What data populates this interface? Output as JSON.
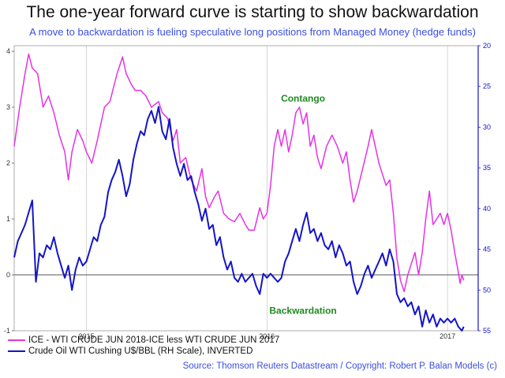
{
  "colors": {
    "spread": "#e632e6",
    "crude": "#1414c8",
    "accent_blue": "#3a4fe0",
    "annotation_green": "#1f8a1f",
    "zero_line": "#555555",
    "grid": "#bbbbbb"
  },
  "chart_data": {
    "type": "line",
    "title": "The one-year forward curve is starting to show backwardation",
    "subtitle": "A move to backwardation is fueling speculative long positions from Managed Money (hedge funds)",
    "source": "Source: Thomson Reuters Datastream / Copyright: Robert P. Balan Models (c)",
    "x_ticks": [
      "2015",
      "2016",
      "2017"
    ],
    "x_tick_positions": [
      2015.0,
      2016.0,
      2017.0
    ],
    "x_range": [
      2014.6,
      2017.17
    ],
    "left_axis": {
      "ticks": [
        "-1",
        "0",
        "1",
        "2",
        "3",
        "4"
      ],
      "range": [
        -1,
        4.1
      ]
    },
    "right_axis": {
      "ticks": [
        "20",
        "25",
        "30",
        "35",
        "40",
        "45",
        "50",
        "55"
      ],
      "range": [
        20,
        55
      ],
      "inverted": true
    },
    "annotations": [
      {
        "text": "Contango",
        "x": 2016.2,
        "y": 3.1
      },
      {
        "text": "Backwardation",
        "x": 2016.2,
        "y": -0.7
      }
    ],
    "series": [
      {
        "name": "ICE - WTI CRUDE JUN 2018-ICE less WTI CRUDE JUN 2017",
        "axis": "left",
        "points": [
          [
            2014.6,
            2.3
          ],
          [
            2014.63,
            3.0
          ],
          [
            2014.66,
            3.6
          ],
          [
            2014.68,
            3.95
          ],
          [
            2014.7,
            3.7
          ],
          [
            2014.73,
            3.6
          ],
          [
            2014.76,
            3.0
          ],
          [
            2014.79,
            3.2
          ],
          [
            2014.82,
            2.9
          ],
          [
            2014.85,
            2.5
          ],
          [
            2014.88,
            2.2
          ],
          [
            2014.9,
            1.7
          ],
          [
            2014.92,
            2.2
          ],
          [
            2014.95,
            2.6
          ],
          [
            2014.98,
            2.4
          ],
          [
            2015.0,
            2.2
          ],
          [
            2015.03,
            2.0
          ],
          [
            2015.06,
            2.4
          ],
          [
            2015.1,
            3.0
          ],
          [
            2015.13,
            3.1
          ],
          [
            2015.17,
            3.6
          ],
          [
            2015.2,
            3.9
          ],
          [
            2015.22,
            3.6
          ],
          [
            2015.25,
            3.4
          ],
          [
            2015.27,
            3.3
          ],
          [
            2015.3,
            3.3
          ],
          [
            2015.33,
            3.2
          ],
          [
            2015.36,
            3.0
          ],
          [
            2015.4,
            3.1
          ],
          [
            2015.42,
            2.9
          ],
          [
            2015.45,
            2.8
          ],
          [
            2015.48,
            2.4
          ],
          [
            2015.5,
            2.6
          ],
          [
            2015.52,
            2.0
          ],
          [
            2015.55,
            2.1
          ],
          [
            2015.58,
            1.7
          ],
          [
            2015.61,
            1.5
          ],
          [
            2015.64,
            1.9
          ],
          [
            2015.66,
            1.4
          ],
          [
            2015.68,
            1.2
          ],
          [
            2015.71,
            1.4
          ],
          [
            2015.73,
            1.5
          ],
          [
            2015.76,
            1.1
          ],
          [
            2015.79,
            1.0
          ],
          [
            2015.82,
            0.95
          ],
          [
            2015.85,
            1.1
          ],
          [
            2015.88,
            0.9
          ],
          [
            2015.9,
            0.8
          ],
          [
            2015.93,
            0.8
          ],
          [
            2015.96,
            1.2
          ],
          [
            2015.98,
            1.0
          ],
          [
            2016.0,
            1.1
          ],
          [
            2016.02,
            1.6
          ],
          [
            2016.04,
            2.3
          ],
          [
            2016.06,
            2.6
          ],
          [
            2016.08,
            2.3
          ],
          [
            2016.1,
            2.6
          ],
          [
            2016.12,
            2.2
          ],
          [
            2016.14,
            2.5
          ],
          [
            2016.16,
            2.9
          ],
          [
            2016.18,
            3.0
          ],
          [
            2016.2,
            2.7
          ],
          [
            2016.22,
            2.9
          ],
          [
            2016.24,
            2.3
          ],
          [
            2016.26,
            2.5
          ],
          [
            2016.28,
            2.1
          ],
          [
            2016.3,
            1.9
          ],
          [
            2016.33,
            2.3
          ],
          [
            2016.36,
            2.5
          ],
          [
            2016.39,
            2.3
          ],
          [
            2016.42,
            2.0
          ],
          [
            2016.44,
            2.2
          ],
          [
            2016.46,
            1.7
          ],
          [
            2016.48,
            1.3
          ],
          [
            2016.5,
            1.5
          ],
          [
            2016.53,
            1.9
          ],
          [
            2016.56,
            2.3
          ],
          [
            2016.58,
            2.6
          ],
          [
            2016.6,
            2.3
          ],
          [
            2016.62,
            2.0
          ],
          [
            2016.64,
            1.8
          ],
          [
            2016.66,
            1.6
          ],
          [
            2016.68,
            1.7
          ],
          [
            2016.7,
            1.1
          ],
          [
            2016.72,
            0.3
          ],
          [
            2016.74,
            -0.1
          ],
          [
            2016.76,
            -0.3
          ],
          [
            2016.78,
            0.0
          ],
          [
            2016.8,
            0.2
          ],
          [
            2016.82,
            0.4
          ],
          [
            2016.84,
            0.0
          ],
          [
            2016.86,
            0.4
          ],
          [
            2016.88,
            1.0
          ],
          [
            2016.9,
            1.5
          ],
          [
            2016.92,
            0.9
          ],
          [
            2016.94,
            1.0
          ],
          [
            2016.96,
            1.1
          ],
          [
            2016.98,
            0.9
          ],
          [
            2017.0,
            1.1
          ],
          [
            2017.02,
            0.8
          ],
          [
            2017.04,
            0.4
          ],
          [
            2017.06,
            0.05
          ],
          [
            2017.07,
            -0.15
          ],
          [
            2017.08,
            0.0
          ],
          [
            2017.09,
            -0.1
          ]
        ]
      },
      {
        "name": "Crude Oil WTI Cushing U$/BBL (RH Scale), INVERTED",
        "axis": "right",
        "points": [
          [
            2014.6,
            46.0
          ],
          [
            2014.62,
            44.0
          ],
          [
            2014.64,
            43.0
          ],
          [
            2014.66,
            42.0
          ],
          [
            2014.68,
            40.5
          ],
          [
            2014.7,
            39.0
          ],
          [
            2014.72,
            49.0
          ],
          [
            2014.74,
            45.5
          ],
          [
            2014.76,
            46.0
          ],
          [
            2014.78,
            44.5
          ],
          [
            2014.8,
            45.0
          ],
          [
            2014.82,
            43.5
          ],
          [
            2014.84,
            45.5
          ],
          [
            2014.86,
            47.0
          ],
          [
            2014.88,
            48.5
          ],
          [
            2014.9,
            47.0
          ],
          [
            2014.92,
            50.0
          ],
          [
            2014.94,
            47.5
          ],
          [
            2014.96,
            46.0
          ],
          [
            2014.98,
            47.0
          ],
          [
            2015.0,
            46.5
          ],
          [
            2015.02,
            45.0
          ],
          [
            2015.04,
            43.5
          ],
          [
            2015.06,
            44.0
          ],
          [
            2015.08,
            42.0
          ],
          [
            2015.1,
            41.0
          ],
          [
            2015.12,
            38.0
          ],
          [
            2015.14,
            36.5
          ],
          [
            2015.16,
            35.5
          ],
          [
            2015.18,
            34.0
          ],
          [
            2015.2,
            36.0
          ],
          [
            2015.22,
            38.5
          ],
          [
            2015.24,
            37.0
          ],
          [
            2015.26,
            34.0
          ],
          [
            2015.28,
            32.0
          ],
          [
            2015.3,
            30.5
          ],
          [
            2015.32,
            31.0
          ],
          [
            2015.34,
            29.0
          ],
          [
            2015.36,
            28.0
          ],
          [
            2015.38,
            29.5
          ],
          [
            2015.4,
            27.5
          ],
          [
            2015.42,
            30.5
          ],
          [
            2015.44,
            31.5
          ],
          [
            2015.46,
            29.0
          ],
          [
            2015.48,
            32.5
          ],
          [
            2015.5,
            34.5
          ],
          [
            2015.52,
            36.0
          ],
          [
            2015.54,
            34.5
          ],
          [
            2015.56,
            36.5
          ],
          [
            2015.58,
            36.0
          ],
          [
            2015.6,
            38.0
          ],
          [
            2015.62,
            39.5
          ],
          [
            2015.64,
            41.5
          ],
          [
            2015.66,
            40.0
          ],
          [
            2015.68,
            42.5
          ],
          [
            2015.7,
            42.0
          ],
          [
            2015.72,
            44.5
          ],
          [
            2015.74,
            43.5
          ],
          [
            2015.76,
            46.0
          ],
          [
            2015.78,
            47.5
          ],
          [
            2015.8,
            46.5
          ],
          [
            2015.82,
            48.5
          ],
          [
            2015.84,
            49.0
          ],
          [
            2015.86,
            48.0
          ],
          [
            2015.88,
            49.0
          ],
          [
            2015.9,
            48.5
          ],
          [
            2015.92,
            48.0
          ],
          [
            2015.94,
            49.5
          ],
          [
            2015.96,
            50.5
          ],
          [
            2015.98,
            48.0
          ],
          [
            2016.0,
            48.5
          ],
          [
            2016.02,
            48.0
          ],
          [
            2016.04,
            48.5
          ],
          [
            2016.06,
            49.0
          ],
          [
            2016.08,
            48.5
          ],
          [
            2016.1,
            46.5
          ],
          [
            2016.12,
            45.5
          ],
          [
            2016.14,
            44.0
          ],
          [
            2016.16,
            42.5
          ],
          [
            2016.18,
            44.0
          ],
          [
            2016.2,
            42.0
          ],
          [
            2016.22,
            40.5
          ],
          [
            2016.24,
            43.0
          ],
          [
            2016.26,
            42.5
          ],
          [
            2016.28,
            44.0
          ],
          [
            2016.3,
            43.0
          ],
          [
            2016.32,
            44.5
          ],
          [
            2016.34,
            45.0
          ],
          [
            2016.36,
            44.0
          ],
          [
            2016.38,
            46.0
          ],
          [
            2016.4,
            44.5
          ],
          [
            2016.42,
            45.5
          ],
          [
            2016.44,
            47.0
          ],
          [
            2016.46,
            46.5
          ],
          [
            2016.48,
            49.0
          ],
          [
            2016.5,
            50.5
          ],
          [
            2016.52,
            49.5
          ],
          [
            2016.54,
            48.0
          ],
          [
            2016.56,
            47.0
          ],
          [
            2016.58,
            48.5
          ],
          [
            2016.6,
            47.5
          ],
          [
            2016.62,
            46.5
          ],
          [
            2016.64,
            45.5
          ],
          [
            2016.66,
            47.0
          ],
          [
            2016.68,
            45.0
          ],
          [
            2016.7,
            46.5
          ],
          [
            2016.72,
            50.5
          ],
          [
            2016.74,
            51.5
          ],
          [
            2016.76,
            51.0
          ],
          [
            2016.78,
            52.0
          ],
          [
            2016.8,
            51.5
          ],
          [
            2016.82,
            53.0
          ],
          [
            2016.84,
            52.0
          ],
          [
            2016.86,
            54.5
          ],
          [
            2016.88,
            52.5
          ],
          [
            2016.9,
            54.0
          ],
          [
            2016.92,
            53.0
          ],
          [
            2016.94,
            54.5
          ],
          [
            2016.96,
            53.5
          ],
          [
            2016.98,
            54.0
          ],
          [
            2017.0,
            53.5
          ],
          [
            2017.02,
            54.0
          ],
          [
            2017.04,
            53.5
          ],
          [
            2017.06,
            54.5
          ],
          [
            2017.08,
            55.0
          ],
          [
            2017.09,
            54.5
          ]
        ]
      }
    ]
  }
}
